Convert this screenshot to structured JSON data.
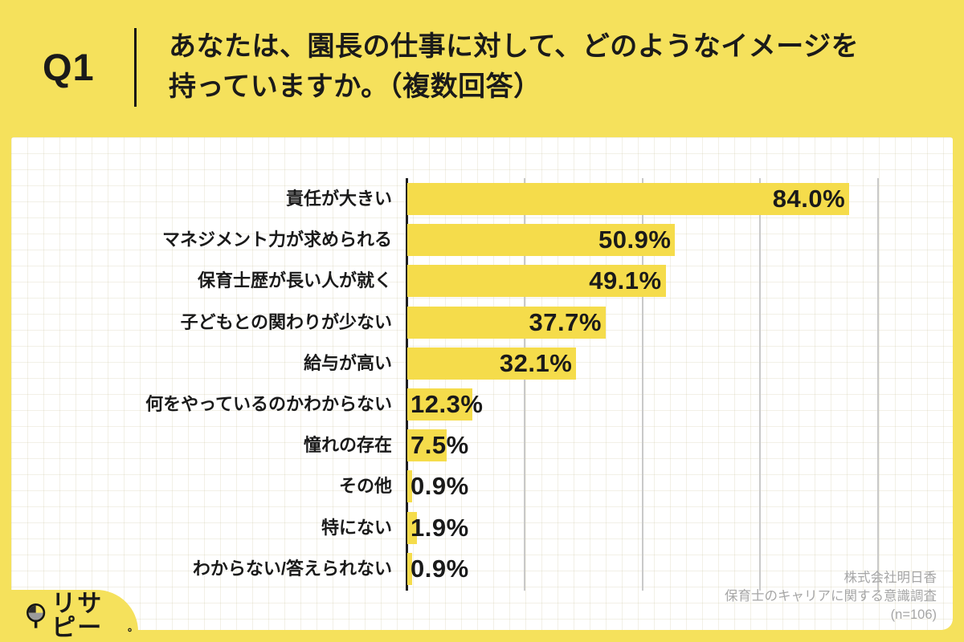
{
  "header": {
    "q_label": "Q1",
    "title_line1": "あなたは、園長の仕事に対して、どのようなイメージを",
    "title_line2": "持っていますか。（複数回答）"
  },
  "chart_data": {
    "type": "bar",
    "orientation": "horizontal",
    "title": "あなたは、園長の仕事に対して、どのようなイメージを持っていますか。（複数回答）",
    "categories": [
      "責任が大きい",
      "マネジメント力が求められる",
      "保育士歴が長い人が就く",
      "子どもとの関わりが少ない",
      "給与が高い",
      "何をやっているのかわからない",
      "憧れの存在",
      "その他",
      "特にない",
      "わからない/答えられない"
    ],
    "values": [
      84.0,
      50.9,
      49.1,
      37.7,
      32.1,
      12.3,
      7.5,
      0.9,
      1.9,
      0.9
    ],
    "value_labels": [
      "84.0%",
      "50.9%",
      "49.1%",
      "37.7%",
      "32.1%",
      "12.3%",
      "7.5%",
      "0.9%",
      "1.9%",
      "0.9%"
    ],
    "xlim": [
      0,
      100
    ],
    "grid": true,
    "legend": false,
    "sample_size": "(n=106)"
  },
  "footer": {
    "line1": "株式会社明日香",
    "line2": "保育士のキャリアに関する意識調査",
    "line3": "(n=106)"
  },
  "logo": {
    "text": "リサピー",
    "mark": "。"
  },
  "colors": {
    "bg": "#F5E15C",
    "bar": "#F5DC4B",
    "ink": "#1A1A1A",
    "muted": "#A6A6A6",
    "grid": "#C9C9C9"
  }
}
